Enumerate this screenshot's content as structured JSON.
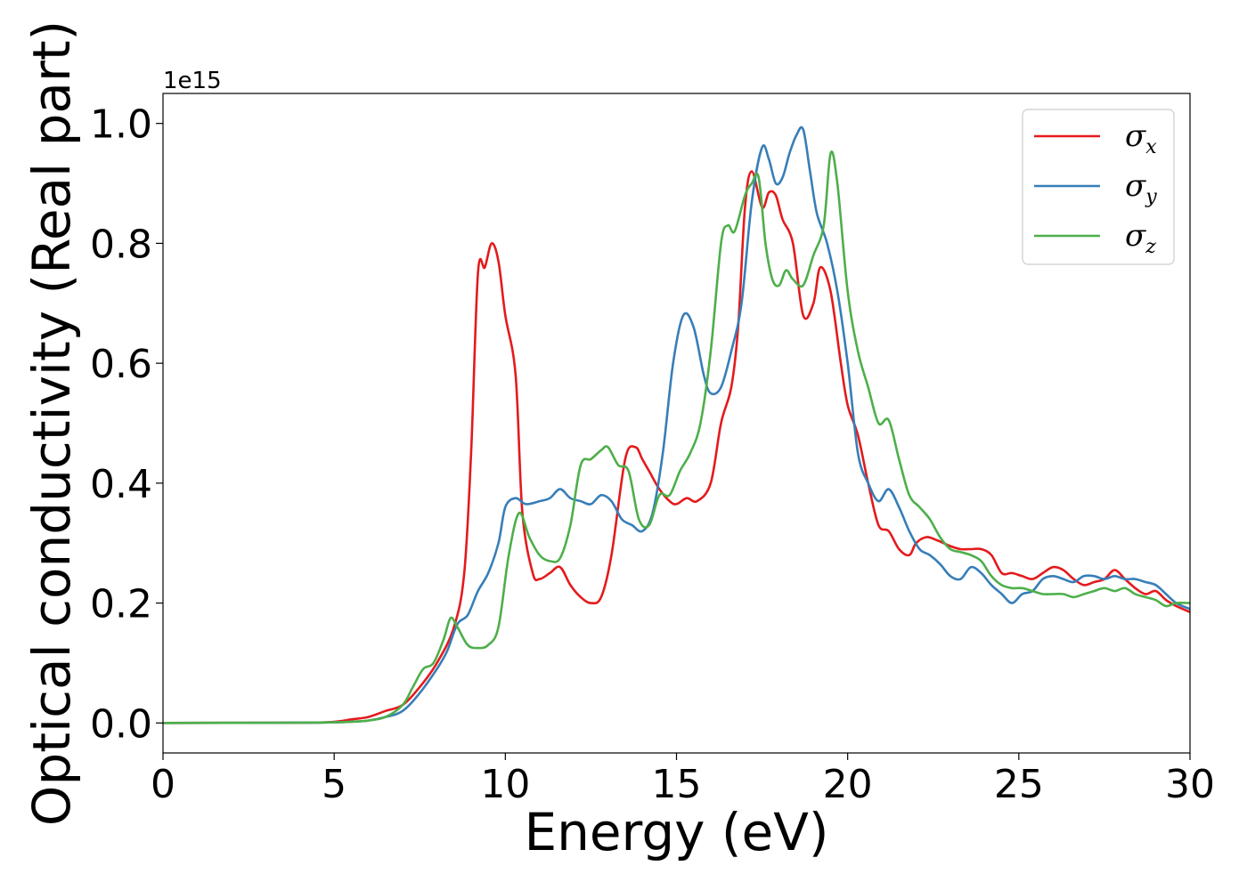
{
  "chart_data": {
    "type": "line",
    "xlabel": "Energy (eV)",
    "ylabel": "Optical conductivity (Real part)",
    "y_offset_text": "1e15",
    "xlim": [
      0,
      30
    ],
    "ylim": [
      -0.05,
      1.05
    ],
    "y_scale_factor": 1000000000000000.0,
    "xticks": [
      0,
      5,
      10,
      15,
      20,
      25,
      30
    ],
    "xtick_labels": [
      "0",
      "5",
      "10",
      "15",
      "20",
      "25",
      "30"
    ],
    "yticks": [
      0.0,
      0.2,
      0.4,
      0.6,
      0.8,
      1.0
    ],
    "ytick_labels": [
      "0.0",
      "0.2",
      "0.4",
      "0.6",
      "0.8",
      "1.0"
    ],
    "grid": false,
    "legend_position": "top-right",
    "series": [
      {
        "name": "σx",
        "symbol": "σ",
        "subscript": "x",
        "color": "#e41a1c",
        "x": [
          0,
          4,
          5,
          5.5,
          6,
          6.5,
          7,
          7.5,
          8,
          8.5,
          8.8,
          9.0,
          9.2,
          9.4,
          9.6,
          9.8,
          10.0,
          10.3,
          10.5,
          10.8,
          11.0,
          11.3,
          11.6,
          11.9,
          12.2,
          12.5,
          12.8,
          13.1,
          13.5,
          13.8,
          14.0,
          14.2,
          14.5,
          14.8,
          15.0,
          15.3,
          15.6,
          16.0,
          16.3,
          16.6,
          16.8,
          17.0,
          17.2,
          17.5,
          17.7,
          17.9,
          18.1,
          18.4,
          18.7,
          19.0,
          19.2,
          19.5,
          19.8,
          20.0,
          20.3,
          20.6,
          20.9,
          21.2,
          21.5,
          21.8,
          22.0,
          22.3,
          22.6,
          23.0,
          23.3,
          23.6,
          23.9,
          24.2,
          24.5,
          24.8,
          25.1,
          25.4,
          25.7,
          26.0,
          26.3,
          26.6,
          26.9,
          27.2,
          27.5,
          27.8,
          28.1,
          28.4,
          28.7,
          29.0,
          29.3,
          29.6,
          30.0
        ],
        "y": [
          0.0,
          0.0005,
          0.002,
          0.006,
          0.01,
          0.02,
          0.03,
          0.06,
          0.1,
          0.16,
          0.25,
          0.45,
          0.75,
          0.76,
          0.8,
          0.77,
          0.68,
          0.58,
          0.35,
          0.25,
          0.24,
          0.25,
          0.26,
          0.23,
          0.21,
          0.2,
          0.21,
          0.28,
          0.44,
          0.46,
          0.44,
          0.42,
          0.39,
          0.37,
          0.365,
          0.375,
          0.37,
          0.4,
          0.5,
          0.56,
          0.66,
          0.86,
          0.92,
          0.86,
          0.885,
          0.88,
          0.84,
          0.8,
          0.68,
          0.7,
          0.76,
          0.72,
          0.6,
          0.53,
          0.48,
          0.4,
          0.33,
          0.32,
          0.29,
          0.28,
          0.3,
          0.31,
          0.305,
          0.295,
          0.29,
          0.29,
          0.29,
          0.28,
          0.25,
          0.25,
          0.245,
          0.24,
          0.25,
          0.26,
          0.255,
          0.24,
          0.23,
          0.235,
          0.24,
          0.255,
          0.24,
          0.225,
          0.215,
          0.22,
          0.205,
          0.195,
          0.185
        ]
      },
      {
        "name": "σy",
        "symbol": "σ",
        "subscript": "y",
        "color": "#377eb8",
        "x": [
          0,
          4,
          5,
          5.5,
          6,
          6.5,
          7,
          7.5,
          8,
          8.3,
          8.6,
          8.9,
          9.2,
          9.5,
          9.8,
          10.0,
          10.3,
          10.6,
          11.0,
          11.3,
          11.6,
          11.9,
          12.2,
          12.5,
          12.8,
          13.1,
          13.4,
          13.7,
          14.0,
          14.3,
          14.6,
          14.9,
          15.2,
          15.5,
          15.8,
          16.0,
          16.3,
          16.6,
          16.9,
          17.2,
          17.5,
          17.7,
          17.9,
          18.1,
          18.3,
          18.5,
          18.7,
          18.9,
          19.1,
          19.4,
          19.7,
          20.0,
          20.3,
          20.6,
          20.9,
          21.2,
          21.5,
          21.8,
          22.1,
          22.4,
          22.7,
          23.0,
          23.3,
          23.6,
          23.9,
          24.2,
          24.5,
          24.8,
          25.1,
          25.4,
          25.7,
          26.0,
          26.3,
          26.6,
          26.9,
          27.2,
          27.5,
          27.8,
          28.1,
          28.4,
          28.7,
          29.0,
          29.3,
          29.6,
          30.0
        ],
        "y": [
          0.0,
          0.0005,
          0.001,
          0.002,
          0.004,
          0.01,
          0.02,
          0.05,
          0.09,
          0.12,
          0.165,
          0.18,
          0.22,
          0.25,
          0.3,
          0.36,
          0.375,
          0.365,
          0.37,
          0.375,
          0.39,
          0.375,
          0.37,
          0.365,
          0.38,
          0.37,
          0.34,
          0.33,
          0.32,
          0.35,
          0.45,
          0.6,
          0.68,
          0.66,
          0.58,
          0.55,
          0.56,
          0.62,
          0.7,
          0.87,
          0.96,
          0.94,
          0.9,
          0.91,
          0.95,
          0.98,
          0.99,
          0.92,
          0.85,
          0.8,
          0.72,
          0.6,
          0.45,
          0.4,
          0.37,
          0.39,
          0.36,
          0.32,
          0.29,
          0.28,
          0.265,
          0.245,
          0.24,
          0.26,
          0.25,
          0.23,
          0.215,
          0.2,
          0.215,
          0.22,
          0.24,
          0.245,
          0.24,
          0.235,
          0.245,
          0.245,
          0.24,
          0.245,
          0.24,
          0.24,
          0.235,
          0.23,
          0.215,
          0.2,
          0.19
        ]
      },
      {
        "name": "σz",
        "symbol": "σ",
        "subscript": "z",
        "color": "#4daf4a",
        "x": [
          0,
          4,
          5,
          5.5,
          6,
          6.5,
          7,
          7.3,
          7.6,
          7.9,
          8.2,
          8.4,
          8.6,
          8.9,
          9.2,
          9.5,
          9.8,
          10.1,
          10.4,
          10.7,
          11.0,
          11.3,
          11.6,
          11.9,
          12.2,
          12.5,
          12.8,
          13.0,
          13.3,
          13.6,
          13.9,
          14.2,
          14.5,
          14.8,
          15.1,
          15.4,
          15.7,
          16.0,
          16.3,
          16.5,
          16.7,
          17.0,
          17.2,
          17.4,
          17.6,
          17.8,
          18.0,
          18.2,
          18.4,
          18.7,
          19.0,
          19.3,
          19.5,
          19.7,
          20.0,
          20.3,
          20.6,
          20.9,
          21.2,
          21.5,
          21.8,
          22.1,
          22.4,
          22.7,
          23.0,
          23.3,
          23.6,
          23.9,
          24.2,
          24.5,
          24.8,
          25.1,
          25.4,
          25.7,
          26.0,
          26.3,
          26.6,
          26.9,
          27.2,
          27.5,
          27.8,
          28.1,
          28.4,
          28.7,
          29.0,
          29.3,
          29.6,
          30.0
        ],
        "y": [
          0.0,
          0.0005,
          0.001,
          0.002,
          0.004,
          0.01,
          0.03,
          0.06,
          0.09,
          0.1,
          0.14,
          0.175,
          0.16,
          0.13,
          0.125,
          0.13,
          0.16,
          0.28,
          0.35,
          0.31,
          0.28,
          0.27,
          0.275,
          0.33,
          0.43,
          0.44,
          0.455,
          0.46,
          0.43,
          0.42,
          0.34,
          0.33,
          0.38,
          0.38,
          0.42,
          0.45,
          0.5,
          0.62,
          0.8,
          0.83,
          0.82,
          0.88,
          0.9,
          0.91,
          0.8,
          0.74,
          0.73,
          0.755,
          0.74,
          0.73,
          0.78,
          0.83,
          0.95,
          0.9,
          0.72,
          0.62,
          0.56,
          0.5,
          0.505,
          0.44,
          0.38,
          0.36,
          0.34,
          0.31,
          0.29,
          0.285,
          0.28,
          0.27,
          0.245,
          0.23,
          0.225,
          0.225,
          0.22,
          0.215,
          0.215,
          0.215,
          0.21,
          0.215,
          0.22,
          0.225,
          0.22,
          0.225,
          0.215,
          0.21,
          0.205,
          0.195,
          0.2,
          0.2
        ]
      }
    ]
  }
}
